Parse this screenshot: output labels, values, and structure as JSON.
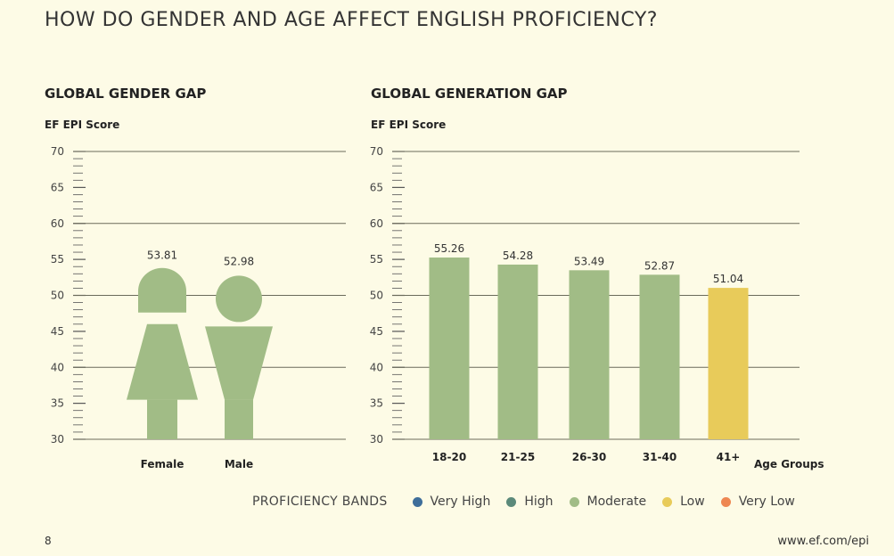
{
  "page_title": "HOW DO GENDER AND AGE AFFECT ENGLISH PROFICIENCY?",
  "colors": {
    "very_high": "#3e6e9a",
    "high": "#5b8a7a",
    "moderate": "#a1bc86",
    "low": "#e8cb5a",
    "very_low": "#ee8752"
  },
  "chart_data": [
    {
      "type": "bar",
      "title": "GLOBAL GENDER GAP",
      "ylabel": "EF EPI Score",
      "xlabel": "",
      "ylim": [
        30,
        70
      ],
      "yticks": [
        30,
        35,
        40,
        45,
        50,
        55,
        60,
        65,
        70
      ],
      "grid_major": [
        40,
        50,
        60,
        70
      ],
      "categories": [
        "Female",
        "Male"
      ],
      "values": [
        53.81,
        52.98
      ],
      "data_labels": [
        "53.81",
        "52.98"
      ],
      "icons": [
        "female-figure-icon",
        "male-figure-icon"
      ],
      "bands": [
        "moderate",
        "moderate"
      ]
    },
    {
      "type": "bar",
      "title": "GLOBAL GENERATION GAP",
      "ylabel": "EF EPI Score",
      "xlabel": "Age Groups",
      "ylim": [
        30,
        70
      ],
      "yticks": [
        30,
        35,
        40,
        45,
        50,
        55,
        60,
        65,
        70
      ],
      "grid_major": [
        40,
        50,
        60,
        70
      ],
      "categories": [
        "18-20",
        "21-25",
        "26-30",
        "31-40",
        "41+"
      ],
      "values": [
        55.26,
        54.28,
        53.49,
        52.87,
        51.04
      ],
      "data_labels": [
        "55.26",
        "54.28",
        "53.49",
        "52.87",
        "51.04"
      ],
      "bands": [
        "moderate",
        "moderate",
        "moderate",
        "moderate",
        "low"
      ]
    }
  ],
  "legend": {
    "title": "PROFICIENCY BANDS",
    "items": [
      {
        "label": "Very High",
        "color": "#3e6e9a"
      },
      {
        "label": "High",
        "color": "#5b8a7a"
      },
      {
        "label": "Moderate",
        "color": "#a1bc86"
      },
      {
        "label": "Low",
        "color": "#e8cb5a"
      },
      {
        "label": "Very Low",
        "color": "#ee8752"
      }
    ]
  },
  "footer": {
    "page_number": "8",
    "website": "www.ef.com/epi"
  }
}
